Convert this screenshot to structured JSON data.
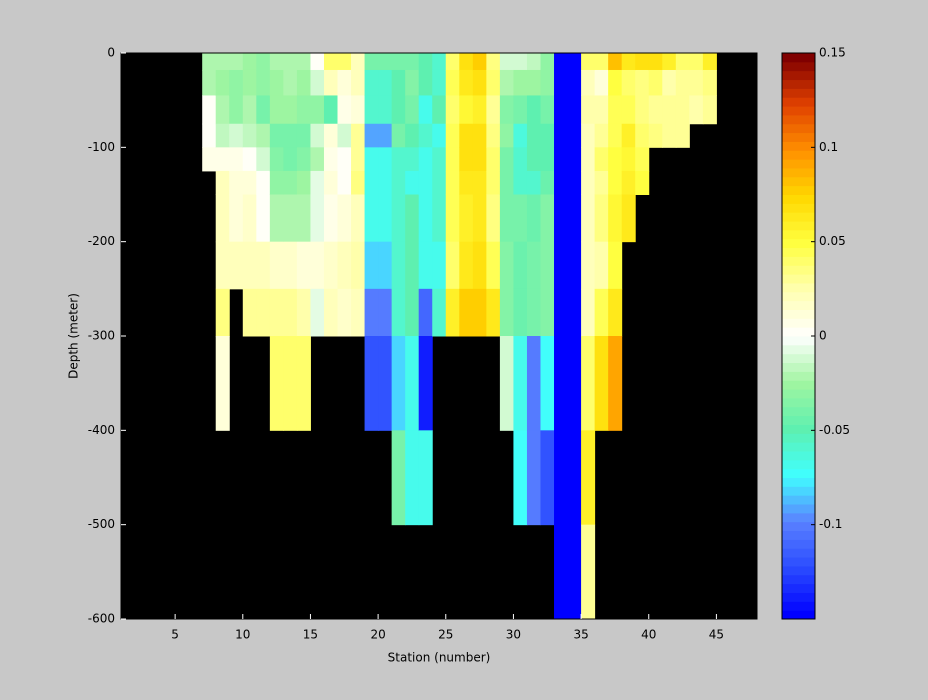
{
  "chart_data": {
    "type": "heatmap",
    "x_label": "Station (number)",
    "y_label": "Depth (meter)",
    "xlim": [
      1,
      48
    ],
    "ylim": [
      -600,
      0
    ],
    "xticks": [
      5,
      10,
      15,
      20,
      25,
      30,
      35,
      40,
      45
    ],
    "yticks": [
      0,
      -100,
      -200,
      -300,
      -400,
      -500,
      -600
    ],
    "x_edges": [
      7,
      8,
      9,
      10,
      11,
      12,
      13,
      14,
      15,
      16,
      17,
      18,
      19,
      20,
      21,
      22,
      23,
      24,
      25,
      26,
      27,
      28,
      29,
      30,
      31,
      32,
      33,
      34,
      35,
      36,
      37,
      38,
      39,
      40,
      41,
      42,
      43,
      44,
      45
    ],
    "y_edges": [
      0,
      -18,
      -45,
      -75,
      -100,
      -125,
      -150,
      -200,
      -250,
      -300,
      -400,
      -500,
      -600
    ],
    "background": "#000000",
    "clim": [
      -0.15,
      0.15
    ],
    "cticks": [
      0.15,
      0.1,
      0.05,
      0,
      -0.05,
      -0.1
    ],
    "colormap": [
      "#0000ff",
      "#2a4bff",
      "#5a80ff",
      "#40ffff",
      "#5ef0b0",
      "#a0f5a0",
      "#ffffff",
      "#ffffb0",
      "#ffff40",
      "#ffd800",
      "#ff9000",
      "#e04000",
      "#800000"
    ],
    "z": [
      [
        -0.02,
        -0.02,
        0,
        0,
        0.005,
        null,
        null,
        null,
        null,
        null,
        null,
        null
      ],
      [
        -0.02,
        -0.025,
        -0.02,
        -0.015,
        0.005,
        0.02,
        0.02,
        0.02,
        0.035,
        0.01,
        null,
        null
      ],
      [
        -0.02,
        -0.03,
        -0.03,
        -0.01,
        0.005,
        0.01,
        0.01,
        0.02,
        null,
        null,
        null,
        null
      ],
      [
        -0.025,
        -0.025,
        -0.02,
        -0.015,
        0,
        0.01,
        0.015,
        0.02,
        0.03,
        null,
        null,
        null
      ],
      [
        -0.03,
        -0.03,
        -0.04,
        -0.02,
        -0.01,
        0,
        0,
        0.02,
        0.03,
        null,
        null,
        null
      ],
      [
        -0.02,
        -0.025,
        -0.025,
        -0.04,
        -0.035,
        -0.03,
        -0.02,
        0.015,
        0.03,
        0.04,
        null,
        null
      ],
      [
        -0.02,
        -0.02,
        -0.025,
        -0.04,
        -0.04,
        -0.03,
        -0.02,
        0.015,
        0.03,
        0.04,
        null,
        null
      ],
      [
        -0.02,
        -0.025,
        -0.03,
        -0.04,
        -0.035,
        -0.025,
        -0.02,
        0.01,
        0.025,
        0.04,
        null,
        null
      ],
      [
        0,
        -0.01,
        -0.03,
        -0.01,
        -0.02,
        -0.005,
        -0.005,
        0.01,
        -0.005,
        null,
        null,
        null
      ],
      [
        0.04,
        0.02,
        -0.05,
        0.01,
        0.005,
        0.01,
        0.005,
        0.015,
        0.02,
        null,
        null,
        null
      ],
      [
        0.04,
        0.01,
        0.005,
        -0.01,
        0,
        0,
        0.01,
        0.02,
        0.015,
        null,
        null,
        null
      ],
      [
        0.02,
        0.02,
        0.01,
        0.03,
        0.03,
        0.035,
        0.02,
        0.025,
        0.02,
        null,
        null,
        null
      ],
      [
        -0.04,
        -0.06,
        -0.06,
        -0.09,
        -0.07,
        -0.07,
        -0.07,
        -0.08,
        -0.1,
        -0.12,
        null,
        null
      ],
      [
        -0.04,
        -0.06,
        -0.06,
        -0.09,
        -0.07,
        -0.07,
        -0.07,
        -0.08,
        -0.1,
        -0.12,
        null,
        null
      ],
      [
        -0.04,
        -0.05,
        -0.05,
        -0.04,
        -0.06,
        -0.06,
        -0.06,
        -0.06,
        -0.06,
        -0.08,
        -0.04,
        null
      ],
      [
        -0.04,
        -0.035,
        -0.04,
        -0.05,
        -0.06,
        -0.07,
        -0.05,
        -0.05,
        -0.05,
        -0.07,
        -0.07,
        null
      ],
      [
        -0.05,
        -0.05,
        -0.07,
        -0.06,
        -0.07,
        -0.07,
        -0.07,
        -0.07,
        -0.11,
        -0.14,
        -0.07,
        null
      ],
      [
        -0.06,
        -0.06,
        -0.05,
        -0.07,
        -0.06,
        -0.06,
        -0.06,
        -0.07,
        -0.06,
        null,
        null,
        null
      ],
      [
        0.04,
        0.045,
        0.04,
        0.045,
        0.045,
        0.045,
        0.045,
        0.04,
        0.06,
        null,
        null,
        null
      ],
      [
        0.07,
        0.065,
        0.055,
        0.07,
        0.07,
        0.065,
        0.06,
        0.065,
        0.075,
        null,
        null,
        null
      ],
      [
        0.075,
        0.07,
        0.06,
        0.07,
        0.07,
        0.065,
        0.065,
        0.07,
        0.075,
        null,
        null,
        null
      ],
      [
        0.035,
        0.04,
        0.03,
        0.035,
        0.04,
        0.04,
        0.035,
        0.045,
        0.065,
        null,
        null,
        null
      ],
      [
        -0.01,
        -0.02,
        -0.035,
        -0.03,
        -0.04,
        -0.04,
        -0.04,
        -0.035,
        -0.035,
        -0.01,
        null,
        null
      ],
      [
        -0.01,
        -0.025,
        -0.04,
        -0.065,
        -0.06,
        -0.06,
        -0.04,
        -0.045,
        -0.045,
        -0.07,
        -0.075,
        null
      ],
      [
        -0.015,
        -0.025,
        -0.05,
        -0.05,
        -0.05,
        -0.06,
        -0.045,
        -0.04,
        -0.04,
        -0.1,
        -0.1,
        null
      ],
      [
        -0.03,
        -0.03,
        -0.04,
        -0.05,
        -0.05,
        -0.045,
        -0.035,
        -0.035,
        -0.035,
        -0.075,
        -0.12,
        null
      ],
      [
        -0.15,
        -0.15,
        -0.15,
        -0.15,
        -0.15,
        -0.15,
        -0.15,
        -0.15,
        -0.15,
        -0.15,
        -0.15,
        -0.15
      ],
      [
        -0.15,
        -0.15,
        -0.15,
        -0.15,
        -0.15,
        -0.15,
        -0.15,
        -0.15,
        -0.15,
        -0.15,
        -0.15,
        -0.15
      ],
      [
        0.04,
        0.02,
        0.025,
        0.02,
        0.02,
        0.02,
        0.02,
        0.02,
        0.02,
        0.04,
        0.06,
        0.03
      ],
      [
        0.04,
        0.01,
        0.025,
        0.03,
        0.04,
        0.03,
        0.035,
        0.025,
        0.045,
        0.07,
        null,
        null
      ],
      [
        0.08,
        0.05,
        0.045,
        0.045,
        0.05,
        0.05,
        0.055,
        0.05,
        0.065,
        0.09,
        null,
        null
      ],
      [
        0.065,
        0.04,
        0.045,
        0.06,
        0.055,
        0.06,
        0.065,
        null,
        null,
        null,
        null,
        null
      ],
      [
        0.07,
        0.035,
        0.035,
        0.04,
        0.045,
        0.05,
        null,
        null,
        null,
        null,
        null,
        null
      ],
      [
        0.07,
        0.04,
        0.03,
        0.035,
        null,
        null,
        null,
        null,
        null,
        null,
        null,
        null
      ],
      [
        0.06,
        0.025,
        0.03,
        0.03,
        null,
        null,
        null,
        null,
        null,
        null,
        null,
        null
      ],
      [
        0.04,
        0.03,
        0.03,
        0.03,
        null,
        null,
        null,
        null,
        null,
        null,
        null,
        null
      ],
      [
        0.04,
        0.03,
        0.025,
        null,
        null,
        null,
        null,
        null,
        null,
        null,
        null,
        null
      ],
      [
        0.06,
        0.035,
        0.03,
        null,
        null,
        null,
        null,
        null,
        null,
        null,
        null,
        null
      ]
    ]
  }
}
